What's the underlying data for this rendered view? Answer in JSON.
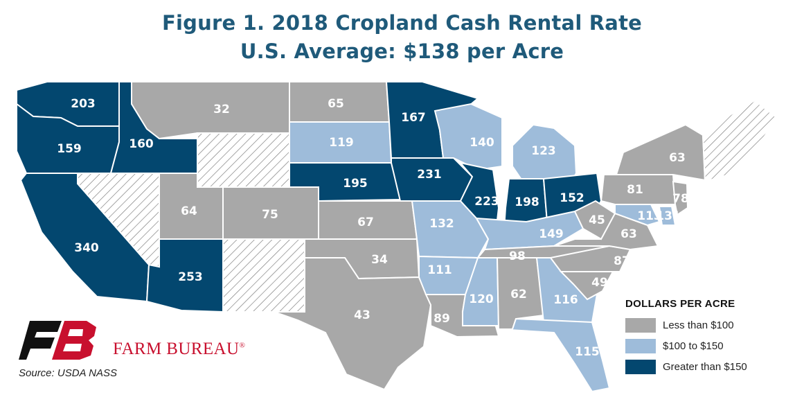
{
  "title": "Figure 1. 2018 Cropland Cash Rental Rate",
  "subtitle": "U.S. Average: $138 per Acre",
  "legend": {
    "title": "DOLLARS PER ACRE",
    "items": [
      {
        "label": "Less than $100",
        "color": "#a8a8a8"
      },
      {
        "label": "$100 to $150",
        "color": "#9ebcda"
      },
      {
        "label": "Greater than $150",
        "color": "#03476f"
      }
    ]
  },
  "colors": {
    "low": "#a8a8a8",
    "mid": "#9ebcda",
    "high": "#03476f",
    "na_hatch": "#777777"
  },
  "brand": "FARM BUREAU",
  "source": "Source: USDA NASS",
  "states": [
    {
      "state": "WA",
      "value": "203",
      "bin": "high"
    },
    {
      "state": "OR",
      "value": "159",
      "bin": "high"
    },
    {
      "state": "ID",
      "value": "160",
      "bin": "high"
    },
    {
      "state": "CA",
      "value": "340",
      "bin": "high"
    },
    {
      "state": "MT",
      "value": "32",
      "bin": "low"
    },
    {
      "state": "UT",
      "value": "64",
      "bin": "low"
    },
    {
      "state": "AZ",
      "value": "253",
      "bin": "high"
    },
    {
      "state": "CO",
      "value": "75",
      "bin": "low"
    },
    {
      "state": "ND",
      "value": "65",
      "bin": "low"
    },
    {
      "state": "SD",
      "value": "119",
      "bin": "mid"
    },
    {
      "state": "NE",
      "value": "195",
      "bin": "high"
    },
    {
      "state": "KS",
      "value": "67",
      "bin": "low"
    },
    {
      "state": "OK",
      "value": "34",
      "bin": "low"
    },
    {
      "state": "TX",
      "value": "43",
      "bin": "low"
    },
    {
      "state": "MN",
      "value": "167",
      "bin": "high"
    },
    {
      "state": "IA",
      "value": "231",
      "bin": "high"
    },
    {
      "state": "MO",
      "value": "132",
      "bin": "mid"
    },
    {
      "state": "AR",
      "value": "111",
      "bin": "mid"
    },
    {
      "state": "LA",
      "value": "89",
      "bin": "low"
    },
    {
      "state": "WI",
      "value": "140",
      "bin": "mid"
    },
    {
      "state": "IL",
      "value": "223",
      "bin": "high"
    },
    {
      "state": "MI",
      "value": "123",
      "bin": "mid"
    },
    {
      "state": "IN",
      "value": "198",
      "bin": "high"
    },
    {
      "state": "OH",
      "value": "152",
      "bin": "high"
    },
    {
      "state": "KY",
      "value": "149",
      "bin": "mid"
    },
    {
      "state": "TN",
      "value": "98",
      "bin": "low"
    },
    {
      "state": "MS",
      "value": "120",
      "bin": "mid"
    },
    {
      "state": "AL",
      "value": "62",
      "bin": "low"
    },
    {
      "state": "GA",
      "value": "116",
      "bin": "mid"
    },
    {
      "state": "FL",
      "value": "115",
      "bin": "mid"
    },
    {
      "state": "SC",
      "value": "49",
      "bin": "low"
    },
    {
      "state": "NC",
      "value": "87",
      "bin": "low"
    },
    {
      "state": "VA",
      "value": "63",
      "bin": "low"
    },
    {
      "state": "WV",
      "value": "45",
      "bin": "low"
    },
    {
      "state": "PA",
      "value": "81",
      "bin": "low"
    },
    {
      "state": "NY",
      "value": "63",
      "bin": "low"
    },
    {
      "state": "NJ",
      "value": "78",
      "bin": "low"
    },
    {
      "state": "MD",
      "value": "113",
      "bin": "mid"
    },
    {
      "state": "DE",
      "value": "131",
      "bin": "mid"
    },
    {
      "state": "NV",
      "value": "",
      "bin": "na"
    },
    {
      "state": "WY",
      "value": "",
      "bin": "na"
    },
    {
      "state": "NM",
      "value": "",
      "bin": "na"
    },
    {
      "state": "NE-US",
      "value": "",
      "bin": "na"
    }
  ]
}
